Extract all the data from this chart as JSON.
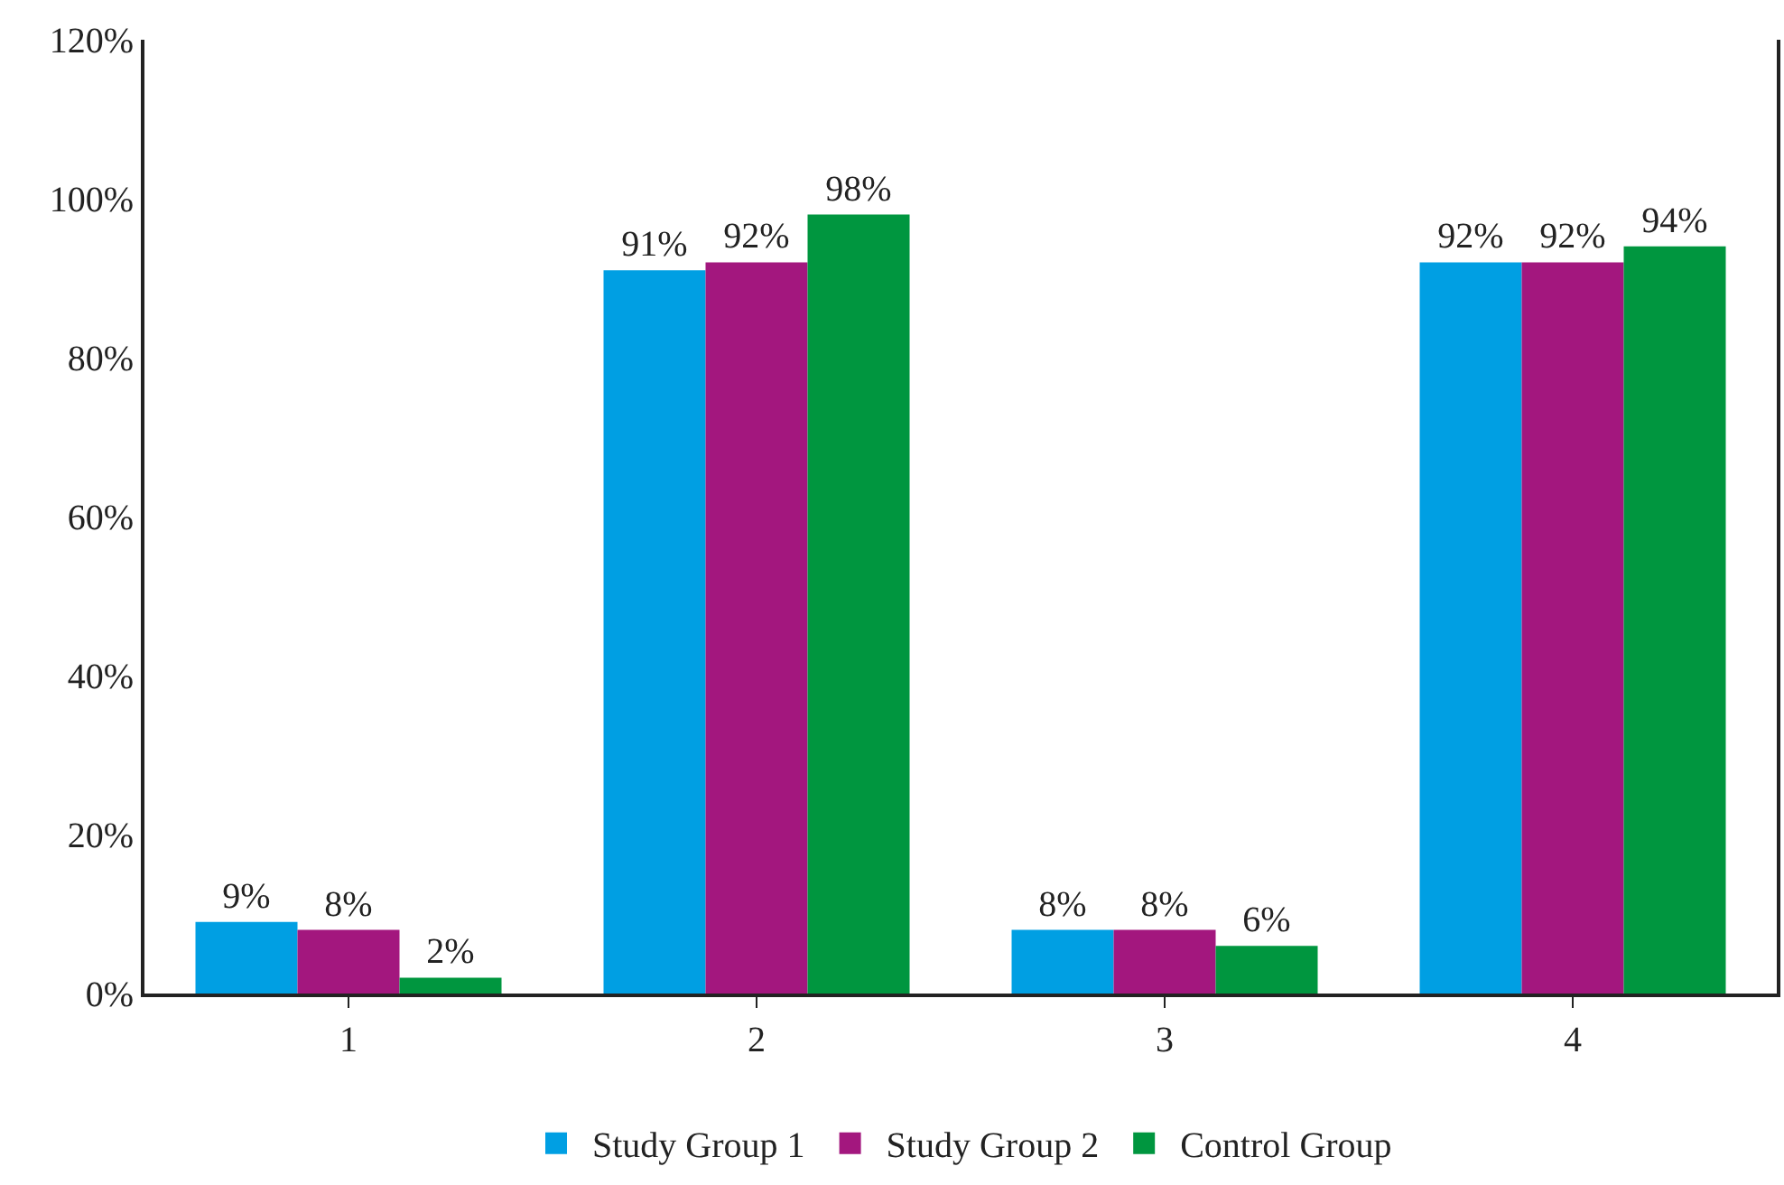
{
  "chart_data": {
    "type": "bar",
    "categories": [
      "1",
      "2",
      "3",
      "4"
    ],
    "series": [
      {
        "name": "Study Group 1",
        "color": "#009fe3",
        "values": [
          9,
          91,
          8,
          92
        ],
        "value_labels": [
          "9%",
          "91%",
          "8%",
          "92%"
        ]
      },
      {
        "name": "Study Group 2",
        "color": "#a3177e",
        "values": [
          8,
          92,
          8,
          92
        ],
        "value_labels": [
          "8%",
          "92%",
          "8%",
          "92%"
        ]
      },
      {
        "name": "Control Group",
        "color": "#00963f",
        "values": [
          2,
          98,
          6,
          94
        ],
        "value_labels": [
          "2%",
          "98%",
          "6%",
          "94%"
        ]
      }
    ],
    "ylim": [
      0,
      120
    ],
    "yticks": [
      {
        "value": 0,
        "label": "0%"
      },
      {
        "value": 20,
        "label": "20%"
      },
      {
        "value": 40,
        "label": "40%"
      },
      {
        "value": 60,
        "label": "60%"
      },
      {
        "value": 80,
        "label": "80%"
      },
      {
        "value": 100,
        "label": "100%"
      },
      {
        "value": 120,
        "label": "120%"
      }
    ],
    "grid": false,
    "legend": "bottom"
  }
}
